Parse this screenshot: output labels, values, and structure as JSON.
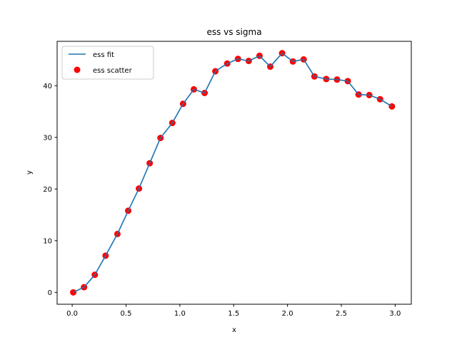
{
  "chart_data": {
    "type": "scatter",
    "title": "ess vs sigma",
    "xlabel": "x",
    "ylabel": "y",
    "xlim": [
      -0.14,
      3.15
    ],
    "ylim": [
      -2.3,
      48.6
    ],
    "xticks": [
      0.0,
      0.5,
      1.0,
      1.5,
      2.0,
      2.5,
      3.0
    ],
    "xtick_labels": [
      "0.0",
      "0.5",
      "1.0",
      "1.5",
      "2.0",
      "2.5",
      "3.0"
    ],
    "yticks": [
      0,
      10,
      20,
      30,
      40
    ],
    "ytick_labels": [
      "0",
      "10",
      "20",
      "30",
      "40"
    ],
    "grid": false,
    "legend_position": "top-left",
    "x": [
      0.01,
      0.11,
      0.21,
      0.31,
      0.42,
      0.52,
      0.62,
      0.72,
      0.82,
      0.93,
      1.03,
      1.13,
      1.23,
      1.33,
      1.44,
      1.54,
      1.64,
      1.74,
      1.84,
      1.95,
      2.05,
      2.15,
      2.25,
      2.36,
      2.46,
      2.56,
      2.66,
      2.76,
      2.86,
      2.97
    ],
    "series": [
      {
        "name": "ess fit",
        "kind": "line",
        "color": "#1f77b4",
        "values": [
          0.0,
          1.0,
          3.4,
          7.1,
          11.3,
          15.8,
          20.1,
          25.0,
          29.9,
          32.8,
          36.5,
          39.3,
          38.6,
          42.8,
          44.3,
          45.2,
          44.8,
          45.8,
          43.7,
          46.3,
          44.7,
          45.1,
          41.8,
          41.3,
          41.2,
          40.9,
          38.3,
          38.2,
          37.4,
          36.0
        ]
      },
      {
        "name": "ess scatter",
        "kind": "scatter",
        "color": "#ff0000",
        "values": [
          0.0,
          1.0,
          3.4,
          7.1,
          11.3,
          15.8,
          20.1,
          25.0,
          29.9,
          32.8,
          36.5,
          39.3,
          38.6,
          42.8,
          44.3,
          45.2,
          44.8,
          45.8,
          43.7,
          46.3,
          44.7,
          45.1,
          41.8,
          41.3,
          41.2,
          40.9,
          38.3,
          38.2,
          37.4,
          36.0
        ]
      }
    ]
  }
}
